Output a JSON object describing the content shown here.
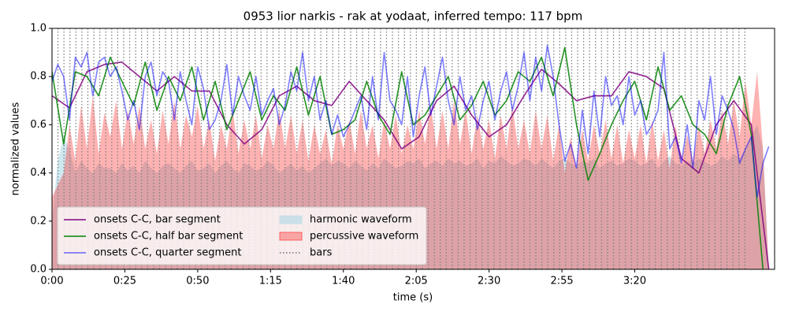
{
  "chart_data": {
    "type": "line",
    "title": "0953 lior narkis - rak at yodaat, inferred tempo: 117 bpm",
    "xlabel": "time (s)",
    "ylabel": "normalized values",
    "xlim": [
      0,
      248
    ],
    "ylim": [
      0,
      1
    ],
    "xticks": [
      {
        "value": 0,
        "label": "0:00"
      },
      {
        "value": 25,
        "label": "0:25"
      },
      {
        "value": 50,
        "label": "0:50"
      },
      {
        "value": 75,
        "label": "1:15"
      },
      {
        "value": 100,
        "label": "1:40"
      },
      {
        "value": 125,
        "label": "2:05"
      },
      {
        "value": 150,
        "label": "2:30"
      },
      {
        "value": 175,
        "label": "2:55"
      },
      {
        "value": 200,
        "label": "3:20"
      }
    ],
    "yticks": [
      {
        "value": 0,
        "label": "0.0"
      },
      0.2,
      0.4,
      0.6,
      0.8,
      {
        "value": 1,
        "label": "1.0"
      }
    ],
    "legend": "lower left",
    "x": [
      0,
      2,
      4,
      6,
      8,
      10,
      12,
      14,
      16,
      18,
      20,
      22,
      24,
      26,
      28,
      30,
      32,
      34,
      36,
      38,
      40,
      42,
      44,
      46,
      48,
      50,
      52,
      54,
      56,
      58,
      60,
      62,
      64,
      66,
      68,
      70,
      72,
      74,
      76,
      78,
      80,
      82,
      84,
      86,
      88,
      90,
      92,
      94,
      96,
      98,
      100,
      102,
      104,
      106,
      108,
      110,
      112,
      114,
      116,
      118,
      120,
      122,
      124,
      126,
      128,
      130,
      132,
      134,
      136,
      138,
      140,
      142,
      144,
      146,
      148,
      150,
      152,
      154,
      156,
      158,
      160,
      162,
      164,
      166,
      168,
      170,
      172,
      174,
      176,
      178,
      180,
      182,
      184,
      186,
      188,
      190,
      192,
      194,
      196,
      198,
      200,
      202,
      204,
      206,
      208,
      210,
      212,
      214,
      216,
      218,
      220,
      222,
      224,
      226,
      228,
      230,
      232,
      234,
      236,
      238,
      240,
      242,
      244,
      246
    ],
    "series": [
      {
        "name": "onsets C-C, bar segment",
        "kind": "line",
        "color": "#800080",
        "alpha": 0.85,
        "x": [
          0,
          6,
          12,
          18,
          24,
          30,
          36,
          42,
          48,
          54,
          60,
          66,
          72,
          78,
          84,
          90,
          96,
          102,
          108,
          114,
          120,
          126,
          132,
          138,
          144,
          150,
          156,
          162,
          168,
          174,
          180,
          186,
          192,
          198,
          204,
          210,
          216,
          222,
          228,
          234,
          240,
          246
        ],
        "values": [
          0.72,
          0.67,
          0.82,
          0.85,
          0.86,
          0.8,
          0.74,
          0.8,
          0.74,
          0.74,
          0.6,
          0.52,
          0.58,
          0.72,
          0.76,
          0.7,
          0.68,
          0.78,
          0.7,
          0.62,
          0.5,
          0.55,
          0.7,
          0.76,
          0.64,
          0.55,
          0.6,
          0.72,
          0.83,
          0.77,
          0.7,
          0.72,
          0.72,
          0.82,
          0.8,
          0.75,
          0.46,
          0.4,
          0.6,
          0.7,
          0.6,
          0
        ]
      },
      {
        "name": "onsets C-C, half bar segment",
        "kind": "line",
        "color": "#008000",
        "alpha": 0.85,
        "x": [
          0,
          4,
          8,
          12,
          16,
          20,
          24,
          28,
          32,
          36,
          40,
          44,
          48,
          52,
          56,
          60,
          64,
          68,
          72,
          76,
          80,
          84,
          88,
          92,
          96,
          100,
          104,
          108,
          112,
          116,
          120,
          124,
          128,
          132,
          136,
          140,
          144,
          148,
          152,
          156,
          160,
          164,
          168,
          172,
          176,
          180,
          184,
          188,
          192,
          196,
          200,
          204,
          208,
          212,
          216,
          220,
          224,
          228,
          232,
          236,
          240,
          244
        ],
        "values": [
          0.82,
          0.52,
          0.82,
          0.8,
          0.72,
          0.88,
          0.78,
          0.68,
          0.86,
          0.66,
          0.8,
          0.7,
          0.84,
          0.62,
          0.78,
          0.58,
          0.7,
          0.82,
          0.62,
          0.72,
          0.66,
          0.84,
          0.64,
          0.8,
          0.56,
          0.58,
          0.62,
          0.78,
          0.64,
          0.56,
          0.82,
          0.6,
          0.64,
          0.72,
          0.8,
          0.62,
          0.68,
          0.78,
          0.64,
          0.7,
          0.82,
          0.78,
          0.88,
          0.72,
          0.92,
          0.6,
          0.37,
          0.48,
          0.6,
          0.7,
          0.78,
          0.62,
          0.84,
          0.66,
          0.72,
          0.6,
          0.56,
          0.48,
          0.68,
          0.8,
          0.56,
          0
        ]
      },
      {
        "name": "onsets C-C, quarter segment",
        "kind": "line",
        "color": "#0000ff",
        "alpha": 0.5,
        "values": [
          0.78,
          0.85,
          0.8,
          0.62,
          0.88,
          0.84,
          0.9,
          0.72,
          0.86,
          0.88,
          0.8,
          0.84,
          0.74,
          0.62,
          0.7,
          0.58,
          0.8,
          0.86,
          0.72,
          0.82,
          0.78,
          0.62,
          0.82,
          0.7,
          0.6,
          0.84,
          0.75,
          0.58,
          0.62,
          0.7,
          0.85,
          0.64,
          0.8,
          0.72,
          0.66,
          0.8,
          0.64,
          0.7,
          0.75,
          0.6,
          0.68,
          0.82,
          0.74,
          0.9,
          0.7,
          0.8,
          0.62,
          0.7,
          0.56,
          0.64,
          0.55,
          0.6,
          0.66,
          0.72,
          0.58,
          0.8,
          0.62,
          0.9,
          0.7,
          0.66,
          0.6,
          0.8,
          0.55,
          0.72,
          0.84,
          0.64,
          0.76,
          0.88,
          0.7,
          0.6,
          0.8,
          0.66,
          0.72,
          0.58,
          0.7,
          0.78,
          0.62,
          0.74,
          0.82,
          0.66,
          0.76,
          0.9,
          0.7,
          0.88,
          0.74,
          0.93,
          0.8,
          0.6,
          0.45,
          0.52,
          0.42,
          0.66,
          0.48,
          0.74,
          0.55,
          0.8,
          0.68,
          0.72,
          0.6,
          0.8,
          0.64,
          0.7,
          0.56,
          0.6,
          0.66,
          0.9,
          0.5,
          0.55,
          0.44,
          0.6,
          0.42,
          0.7,
          0.62,
          0.8,
          0.56,
          0.72,
          0.66,
          0.58,
          0.44,
          0.5,
          0.55,
          0.3,
          0.44,
          0.51
        ]
      },
      {
        "name": "harmonic waveform",
        "kind": "area",
        "color": "#add8e6",
        "alpha": 0.6,
        "values": [
          0.2,
          0.45,
          0.55,
          0.5,
          0.4,
          0.45,
          0.42,
          0.4,
          0.44,
          0.42,
          0.42,
          0.4,
          0.44,
          0.41,
          0.43,
          0.4,
          0.45,
          0.42,
          0.4,
          0.43,
          0.44,
          0.42,
          0.4,
          0.43,
          0.45,
          0.41,
          0.42,
          0.44,
          0.4,
          0.43,
          0.45,
          0.42,
          0.4,
          0.44,
          0.43,
          0.41,
          0.42,
          0.45,
          0.43,
          0.4,
          0.42,
          0.44,
          0.41,
          0.43,
          0.4,
          0.42,
          0.44,
          0.46,
          0.43,
          0.45,
          0.44,
          0.42,
          0.45,
          0.43,
          0.41,
          0.44,
          0.42,
          0.46,
          0.44,
          0.42,
          0.43,
          0.45,
          0.44,
          0.46,
          0.42,
          0.44,
          0.45,
          0.43,
          0.46,
          0.44,
          0.45,
          0.43,
          0.44,
          0.46,
          0.42,
          0.45,
          0.44,
          0.47,
          0.45,
          0.43,
          0.44,
          0.46,
          0.45,
          0.43,
          0.46,
          0.44,
          0.42,
          0.45,
          0.46,
          0.44,
          0.43,
          0.45,
          0.44,
          0.46,
          0.42,
          0.44,
          0.45,
          0.43,
          0.44,
          0.46,
          0.45,
          0.43,
          0.44,
          0.46,
          0.42,
          0.45,
          0.47,
          0.44,
          0.43,
          0.45,
          0.44,
          0.46,
          0.45,
          0.43,
          0.44,
          0.47,
          0.45,
          0.48,
          0.46,
          0.5,
          0.55,
          0.6,
          0.5,
          0
        ]
      },
      {
        "name": "percussive waveform",
        "kind": "area",
        "color": "#ff0000",
        "alpha": 0.3,
        "values": [
          0.3,
          0.35,
          0.4,
          0.6,
          0.45,
          0.68,
          0.5,
          0.72,
          0.48,
          0.65,
          0.55,
          0.7,
          0.5,
          0.66,
          0.52,
          0.68,
          0.5,
          0.62,
          0.48,
          0.66,
          0.52,
          0.7,
          0.5,
          0.64,
          0.55,
          0.68,
          0.5,
          0.62,
          0.45,
          0.6,
          0.5,
          0.66,
          0.48,
          0.62,
          0.5,
          0.64,
          0.46,
          0.6,
          0.5,
          0.66,
          0.5,
          0.64,
          0.48,
          0.62,
          0.45,
          0.6,
          0.48,
          0.58,
          0.44,
          0.6,
          0.5,
          0.62,
          0.48,
          0.66,
          0.5,
          0.6,
          0.46,
          0.62,
          0.5,
          0.64,
          0.48,
          0.6,
          0.5,
          0.66,
          0.52,
          0.68,
          0.5,
          0.66,
          0.5,
          0.7,
          0.52,
          0.66,
          0.48,
          0.64,
          0.5,
          0.62,
          0.46,
          0.64,
          0.5,
          0.68,
          0.5,
          0.62,
          0.48,
          0.66,
          0.5,
          0.64,
          0.45,
          0.6,
          0.4,
          0.55,
          0.42,
          0.58,
          0.45,
          0.6,
          0.48,
          0.62,
          0.46,
          0.6,
          0.44,
          0.58,
          0.46,
          0.6,
          0.44,
          0.62,
          0.45,
          0.58,
          0.42,
          0.6,
          0.44,
          0.56,
          0.45,
          0.6,
          0.48,
          0.62,
          0.5,
          0.66,
          0.52,
          0.7,
          0.55,
          0.78,
          0.6,
          0.82,
          0.5,
          0
        ]
      },
      {
        "name": "bars",
        "kind": "vlines",
        "color": "#808080",
        "alpha": 1,
        "x": [
          0,
          2.05,
          4.1,
          6.15,
          8.2,
          10.25,
          12.3,
          14.35,
          16.4,
          18.45,
          20.5,
          22.55,
          24.6,
          26.65,
          28.7,
          30.75,
          32.8,
          34.85,
          36.9,
          38.95,
          41,
          43.05,
          45.1,
          47.15,
          49.2,
          51.25,
          53.3,
          55.35,
          57.4,
          59.45,
          61.5,
          63.55,
          65.6,
          67.65,
          69.7,
          71.75,
          73.8,
          75.85,
          77.9,
          79.95,
          82,
          84.05,
          86.1,
          88.15,
          90.2,
          92.25,
          94.3,
          96.35,
          98.4,
          100.45,
          102.5,
          104.55,
          106.6,
          108.65,
          110.7,
          112.75,
          114.8,
          116.85,
          118.9,
          120.95,
          123,
          125.05,
          127.1,
          129.15,
          131.2,
          133.25,
          135.3,
          137.35,
          139.4,
          141.45,
          143.5,
          145.55,
          147.6,
          149.65,
          151.7,
          153.75,
          155.8,
          157.85,
          159.9,
          161.95,
          164,
          166.05,
          168.1,
          170.15,
          172.2,
          174.25,
          176.3,
          178.35,
          180.4,
          182.45,
          184.5,
          186.55,
          188.6,
          190.65,
          192.7,
          194.75,
          196.8,
          198.85,
          200.9,
          202.95,
          205,
          207.05,
          209.1,
          211.15,
          213.2,
          215.25,
          217.3,
          219.35,
          221.4,
          223.45,
          225.5,
          227.55,
          229.6,
          231.65,
          233.7,
          235.75,
          237.8
        ]
      }
    ]
  }
}
